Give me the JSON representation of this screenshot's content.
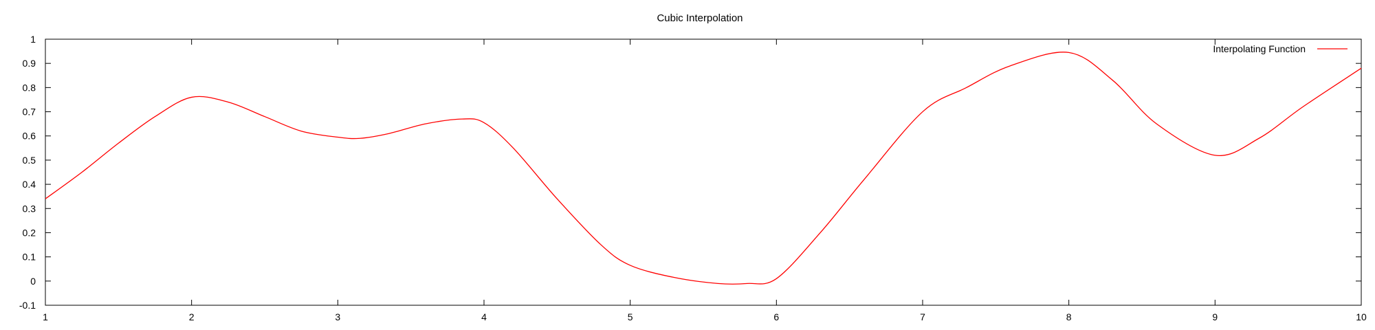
{
  "chart_data": {
    "type": "line",
    "title": "Cubic Interpolation",
    "xlabel": "",
    "ylabel": "",
    "xlim": [
      1,
      10
    ],
    "ylim": [
      -0.1,
      1
    ],
    "grid": false,
    "legend_position": "top-right",
    "x_ticks": [
      "1",
      "2",
      "3",
      "4",
      "5",
      "6",
      "7",
      "8",
      "9",
      "10"
    ],
    "y_ticks": [
      "-0.1",
      "0",
      "0.1",
      "0.2",
      "0.3",
      "0.4",
      "0.5",
      "0.6",
      "0.7",
      "0.8",
      "0.9",
      "1"
    ],
    "series": [
      {
        "name": "Interpolating Function",
        "color": "#ff0000",
        "x": [
          1,
          1.25,
          1.5,
          1.75,
          2,
          2.25,
          2.5,
          2.75,
          3,
          3.15,
          3.35,
          3.6,
          3.85,
          4,
          4.2,
          4.5,
          4.8,
          5,
          5.3,
          5.6,
          5.8,
          6,
          6.3,
          6.6,
          7,
          7.3,
          7.6,
          8,
          8.3,
          8.6,
          9,
          9.3,
          9.6,
          10
        ],
        "y": [
          0.34,
          0.45,
          0.57,
          0.68,
          0.76,
          0.74,
          0.68,
          0.62,
          0.595,
          0.59,
          0.61,
          0.65,
          0.67,
          0.655,
          0.55,
          0.34,
          0.15,
          0.065,
          0.015,
          -0.01,
          -0.01,
          0.01,
          0.2,
          0.42,
          0.7,
          0.8,
          0.89,
          0.945,
          0.83,
          0.65,
          0.52,
          0.59,
          0.72,
          0.88
        ]
      }
    ]
  }
}
